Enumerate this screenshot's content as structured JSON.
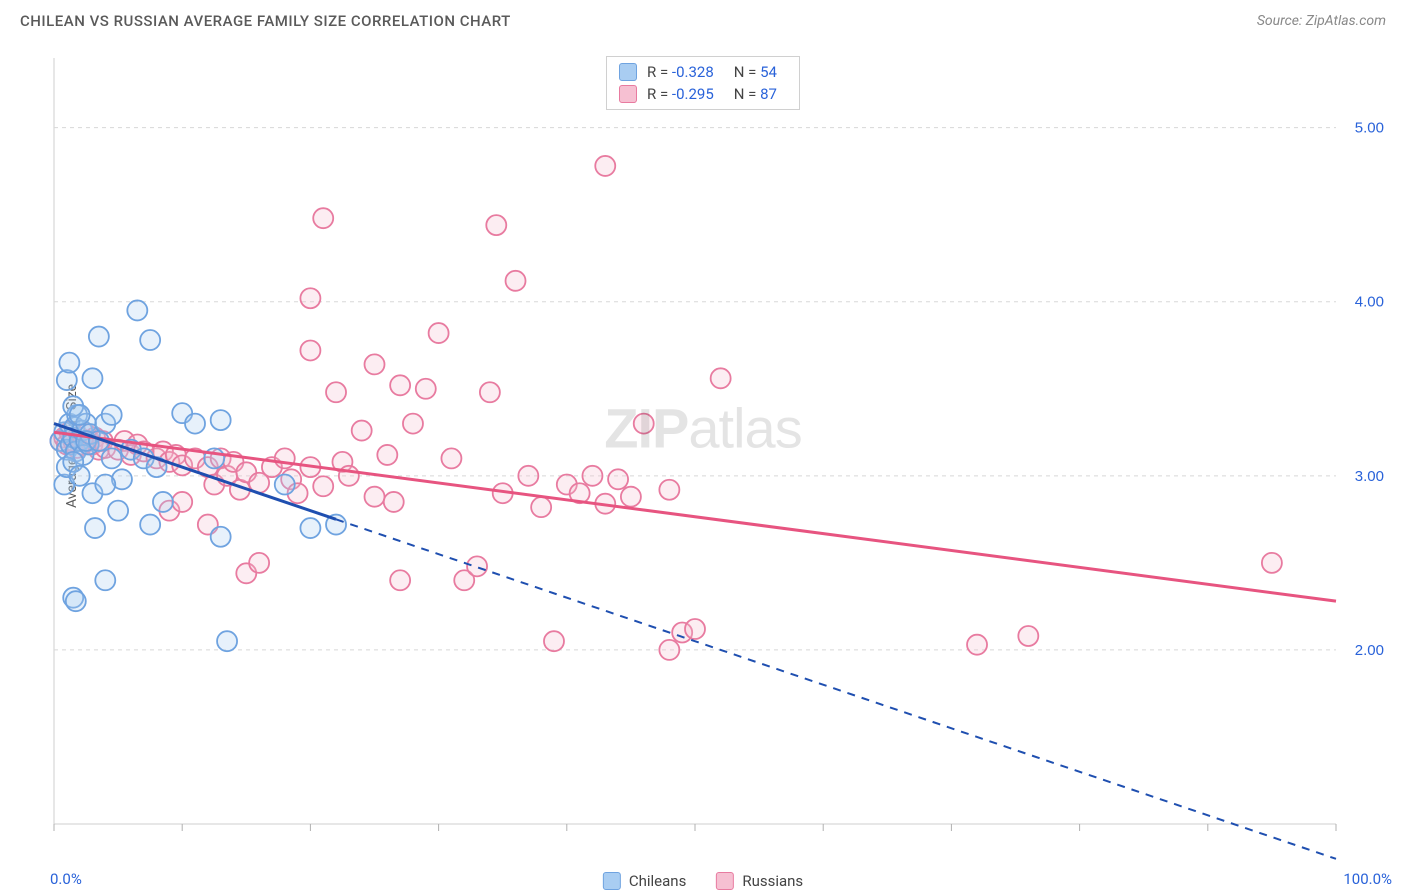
{
  "header": {
    "title": "CHILEAN VS RUSSIAN AVERAGE FAMILY SIZE CORRELATION CHART",
    "source": "Source: ZipAtlas.com"
  },
  "ylabel": "Average Family Size",
  "watermark": {
    "bold": "ZIP",
    "rest": "atlas"
  },
  "chart": {
    "type": "scatter",
    "xlim": [
      0,
      100
    ],
    "ylim": [
      1.0,
      5.4
    ],
    "x_axis_label_min": "0.0%",
    "x_axis_label_max": "100.0%",
    "y_ticks": [
      2.0,
      3.0,
      4.0,
      5.0
    ],
    "y_tick_labels": [
      "2.00",
      "3.00",
      "4.00",
      "5.00"
    ],
    "x_ticks": [
      0,
      10,
      20,
      30,
      40,
      50,
      60,
      70,
      80,
      90,
      100
    ],
    "grid_color": "#d8d8d8",
    "background_color": "#ffffff",
    "axis_color": "#cfcfcf",
    "tick_color": "#b0b0b0",
    "ylabel_color": "#2962d9",
    "marker_radius": 10,
    "marker_stroke_width": 1.8,
    "marker_fill_opacity": 0.28
  },
  "series": {
    "chileans": {
      "label": "Chileans",
      "color_stroke": "#6fa3e0",
      "color_fill": "#a9cdf2",
      "trend_color": "#1f4fb0",
      "trend_solid_xrange": [
        0,
        22
      ],
      "trend_dash_xrange": [
        22,
        100
      ],
      "trend_y_at_x0": 3.3,
      "trend_y_at_x100": 0.8,
      "stats": {
        "R": "-0.328",
        "N": "54"
      },
      "points": [
        [
          0.5,
          3.2
        ],
        [
          0.8,
          3.25
        ],
        [
          1.0,
          3.15
        ],
        [
          1.2,
          3.3
        ],
        [
          1.3,
          3.18
        ],
        [
          1.5,
          3.22
        ],
        [
          1.6,
          3.28
        ],
        [
          1.7,
          3.14
        ],
        [
          1.8,
          3.35
        ],
        [
          2.0,
          3.2
        ],
        [
          2.2,
          3.26
        ],
        [
          2.3,
          3.12
        ],
        [
          2.5,
          3.3
        ],
        [
          2.7,
          3.18
        ],
        [
          2.8,
          3.24
        ],
        [
          1.0,
          3.55
        ],
        [
          1.2,
          3.65
        ],
        [
          3.0,
          3.56
        ],
        [
          3.5,
          3.8
        ],
        [
          4.0,
          3.3
        ],
        [
          4.5,
          3.35
        ],
        [
          5.0,
          2.8
        ],
        [
          5.3,
          2.98
        ],
        [
          6.0,
          3.15
        ],
        [
          6.5,
          3.95
        ],
        [
          7.0,
          3.1
        ],
        [
          7.5,
          3.78
        ],
        [
          8.0,
          3.05
        ],
        [
          8.5,
          2.85
        ],
        [
          1.5,
          2.3
        ],
        [
          1.7,
          2.28
        ],
        [
          3.0,
          2.9
        ],
        [
          3.2,
          2.7
        ],
        [
          4.0,
          2.4
        ],
        [
          4.0,
          2.95
        ],
        [
          10.0,
          3.36
        ],
        [
          11.0,
          3.3
        ],
        [
          12.5,
          3.1
        ],
        [
          13.0,
          3.32
        ],
        [
          13.5,
          2.05
        ],
        [
          13.0,
          2.65
        ],
        [
          18.0,
          2.95
        ],
        [
          20.0,
          2.7
        ],
        [
          22.0,
          2.72
        ],
        [
          7.5,
          2.72
        ],
        [
          0.8,
          2.95
        ],
        [
          1.0,
          3.05
        ],
        [
          1.5,
          3.4
        ],
        [
          2.0,
          3.35
        ],
        [
          2.5,
          3.2
        ],
        [
          1.5,
          3.08
        ],
        [
          2.0,
          3.0
        ],
        [
          3.5,
          3.2
        ],
        [
          4.5,
          3.1
        ]
      ]
    },
    "russians": {
      "label": "Russians",
      "color_stroke": "#e87ba0",
      "color_fill": "#f6c0d2",
      "trend_color": "#e75480",
      "trend_solid_xrange": [
        0,
        100
      ],
      "trend_y_at_x0": 3.25,
      "trend_y_at_x100": 2.28,
      "stats": {
        "R": "-0.295",
        "N": "87"
      },
      "points": [
        [
          0.5,
          3.2
        ],
        [
          0.8,
          3.22
        ],
        [
          1.0,
          3.18
        ],
        [
          1.2,
          3.25
        ],
        [
          1.5,
          3.2
        ],
        [
          1.8,
          3.16
        ],
        [
          2.0,
          3.22
        ],
        [
          2.2,
          3.18
        ],
        [
          2.5,
          3.24
        ],
        [
          2.8,
          3.2
        ],
        [
          3.0,
          3.18
        ],
        [
          3.2,
          3.22
        ],
        [
          3.5,
          3.15
        ],
        [
          3.8,
          3.2
        ],
        [
          4.0,
          3.16
        ],
        [
          5.0,
          3.15
        ],
        [
          5.5,
          3.2
        ],
        [
          6.0,
          3.12
        ],
        [
          6.5,
          3.18
        ],
        [
          7.0,
          3.14
        ],
        [
          8.0,
          3.1
        ],
        [
          8.5,
          3.14
        ],
        [
          9.0,
          3.08
        ],
        [
          9.5,
          3.12
        ],
        [
          10.0,
          3.06
        ],
        [
          11.0,
          3.1
        ],
        [
          12.0,
          3.05
        ],
        [
          12.5,
          2.95
        ],
        [
          13.0,
          3.1
        ],
        [
          13.5,
          3.0
        ],
        [
          14.0,
          3.08
        ],
        [
          14.5,
          2.92
        ],
        [
          15.0,
          3.02
        ],
        [
          16.0,
          2.96
        ],
        [
          17.0,
          3.05
        ],
        [
          18.0,
          3.1
        ],
        [
          18.5,
          2.98
        ],
        [
          19.0,
          2.9
        ],
        [
          20.0,
          3.05
        ],
        [
          21.0,
          2.94
        ],
        [
          22.0,
          3.48
        ],
        [
          22.5,
          3.08
        ],
        [
          23.0,
          3.0
        ],
        [
          21.0,
          4.48
        ],
        [
          20.0,
          4.02
        ],
        [
          24.0,
          3.26
        ],
        [
          25.0,
          2.88
        ],
        [
          26.0,
          3.12
        ],
        [
          26.5,
          2.85
        ],
        [
          27.0,
          2.4
        ],
        [
          28.0,
          3.3
        ],
        [
          29.0,
          3.5
        ],
        [
          30.0,
          3.82
        ],
        [
          31.0,
          3.1
        ],
        [
          32.0,
          2.4
        ],
        [
          33.0,
          2.48
        ],
        [
          34.0,
          3.48
        ],
        [
          34.5,
          4.44
        ],
        [
          35.0,
          2.9
        ],
        [
          36.0,
          4.12
        ],
        [
          37.0,
          3.0
        ],
        [
          38.0,
          2.82
        ],
        [
          39.0,
          2.05
        ],
        [
          40.0,
          2.95
        ],
        [
          41.0,
          2.9
        ],
        [
          42.0,
          3.0
        ],
        [
          43.0,
          2.84
        ],
        [
          44.0,
          2.98
        ],
        [
          45.0,
          2.88
        ],
        [
          46.0,
          3.3
        ],
        [
          43.0,
          4.78
        ],
        [
          48.0,
          2.0
        ],
        [
          49.0,
          2.1
        ],
        [
          50.0,
          2.12
        ],
        [
          52.0,
          3.56
        ],
        [
          48.0,
          2.92
        ],
        [
          15.0,
          2.44
        ],
        [
          16.0,
          2.5
        ],
        [
          76.0,
          2.08
        ],
        [
          72.0,
          2.03
        ],
        [
          95.0,
          2.5
        ],
        [
          12.0,
          2.72
        ],
        [
          20.0,
          3.72
        ],
        [
          25.0,
          3.64
        ],
        [
          27.0,
          3.52
        ],
        [
          9.0,
          2.8
        ],
        [
          10.0,
          2.85
        ]
      ]
    }
  }
}
